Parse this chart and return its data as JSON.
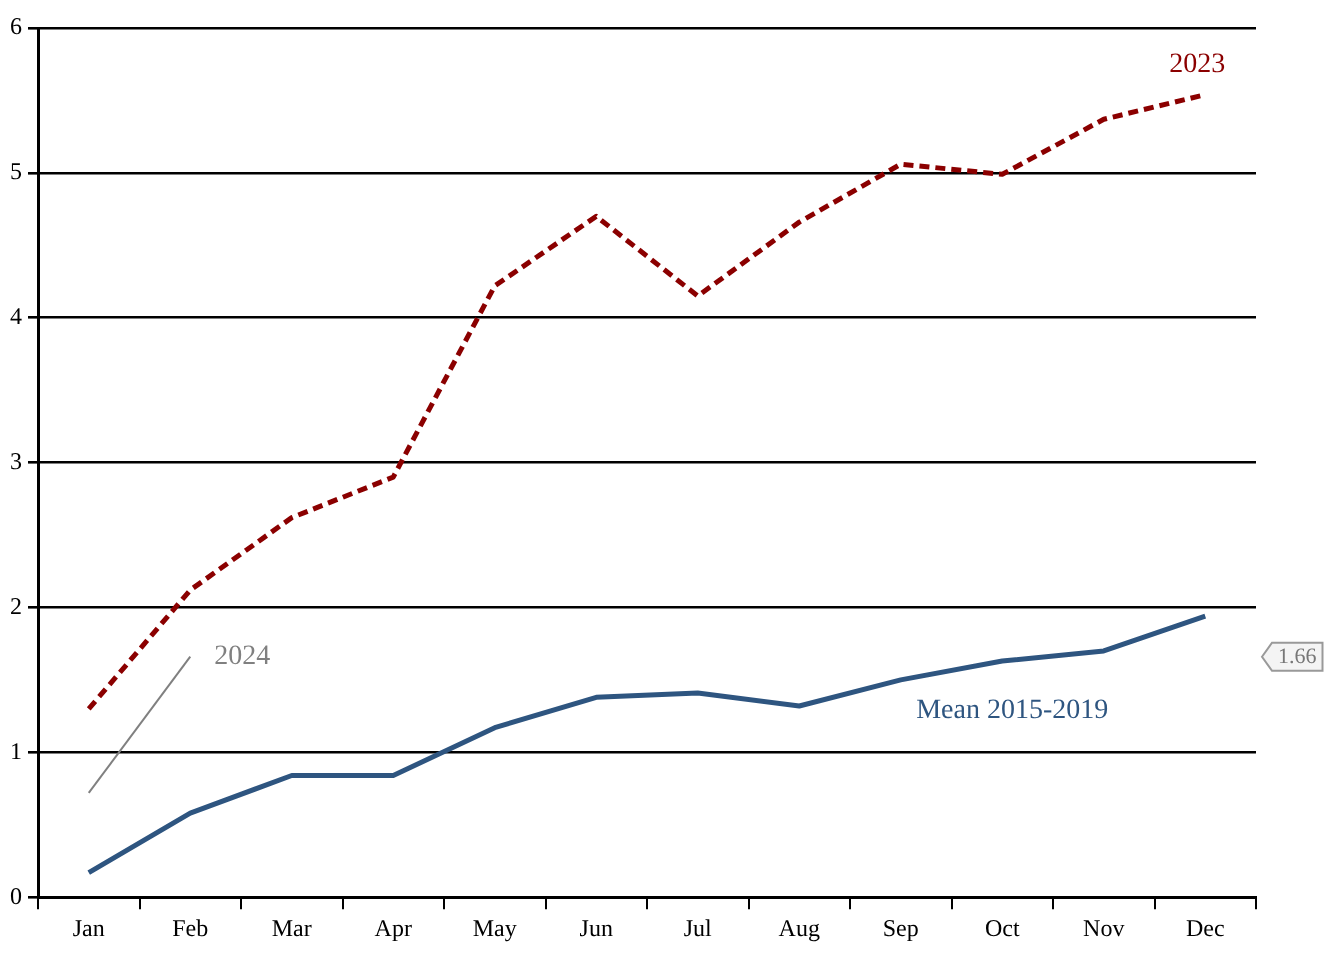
{
  "chart_data": {
    "type": "line",
    "categories": [
      "Jan",
      "Feb",
      "Mar",
      "Apr",
      "May",
      "Jun",
      "Jul",
      "Aug",
      "Sep",
      "Oct",
      "Nov",
      "Dec"
    ],
    "series": [
      {
        "name": "2023",
        "color": "#8b0000",
        "line_style": "dashed",
        "values": [
          1.3,
          2.12,
          2.62,
          2.9,
          4.22,
          4.7,
          4.15,
          4.66,
          5.06,
          4.99,
          5.37,
          5.54
        ]
      },
      {
        "name": "Mean 2015-2019",
        "color": "#2e5580",
        "line_style": "solid",
        "values": [
          0.17,
          0.58,
          0.84,
          0.84,
          1.17,
          1.38,
          1.41,
          1.32,
          1.5,
          1.63,
          1.7,
          1.94
        ]
      },
      {
        "name": "2024",
        "color": "#808080",
        "line_style": "solid",
        "values": [
          0.72,
          1.66,
          null,
          null,
          null,
          null,
          null,
          null,
          null,
          null,
          null,
          null
        ]
      }
    ],
    "ylim": [
      0,
      6
    ],
    "yticks": [
      0,
      1,
      2,
      3,
      4,
      5,
      6
    ],
    "grid": "y",
    "legend": false,
    "marker": "none",
    "annotations": [
      "1.66"
    ]
  }
}
